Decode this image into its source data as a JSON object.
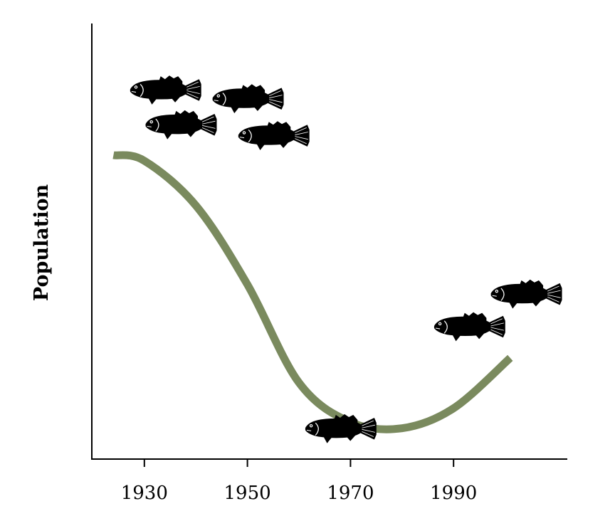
{
  "chart_data": {
    "type": "line",
    "title": "",
    "xlabel": "",
    "ylabel": "Population",
    "x_ticks": [
      "1930",
      "1950",
      "1970",
      "1990"
    ],
    "xlim": [
      1920,
      2008
    ],
    "ylim": [
      0,
      100
    ],
    "y_scale": "unlabeled (no tick marks)",
    "grid": false,
    "series": [
      {
        "color": "#7a8a5e",
        "points": [
          {
            "x": 1924,
            "y": 70
          },
          {
            "x": 1930,
            "y": 68.7
          },
          {
            "x": 1940,
            "y": 58.4
          },
          {
            "x": 1950,
            "y": 40.2
          },
          {
            "x": 1960,
            "y": 17.6
          },
          {
            "x": 1970,
            "y": 8.5
          },
          {
            "x": 1980,
            "y": 7.1
          },
          {
            "x": 1990,
            "y": 11.7
          },
          {
            "x": 2001,
            "y": 23.3
          }
        ]
      }
    ],
    "annotations": [
      {
        "icon": "fish-icon",
        "x": 1934,
        "y": 85
      },
      {
        "icon": "fish-icon",
        "x": 1950,
        "y": 83
      },
      {
        "icon": "fish-icon",
        "x": 1937,
        "y": 77
      },
      {
        "icon": "fish-icon",
        "x": 1955,
        "y": 74.5
      },
      {
        "icon": "fish-icon",
        "x": 1968,
        "y": 7
      },
      {
        "icon": "fish-icon",
        "x": 1993,
        "y": 30.5
      },
      {
        "icon": "fish-icon",
        "x": 2004,
        "y": 38
      }
    ]
  }
}
